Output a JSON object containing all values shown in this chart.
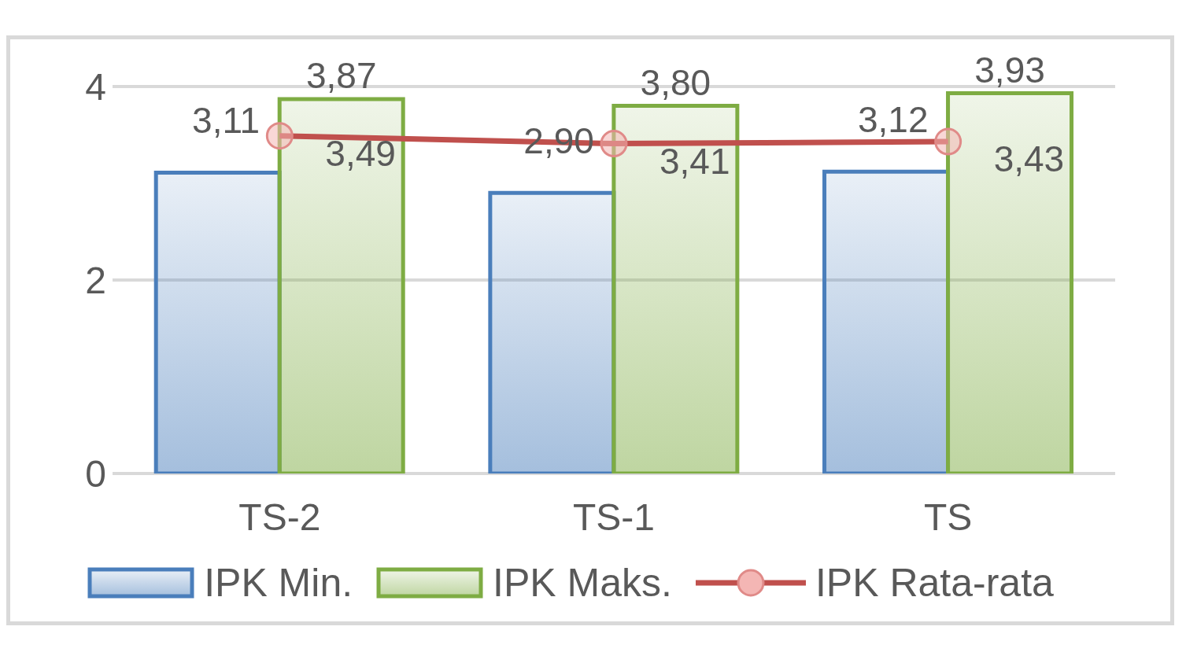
{
  "chart_data": {
    "type": "bar",
    "categories": [
      "TS-2",
      "TS-1",
      "TS"
    ],
    "series": [
      {
        "name": "IPK Min.",
        "color": "#4a7ebb",
        "values": [
          3.11,
          2.9,
          3.12
        ],
        "value_labels": [
          "3,11",
          "2,90",
          "3,12"
        ]
      },
      {
        "name": "IPK Maks.",
        "color": "#7eac43",
        "values": [
          3.87,
          3.8,
          3.93
        ],
        "value_labels": [
          "3,87",
          "3,80",
          "3,93"
        ]
      },
      {
        "name": "IPK Rata-rata",
        "type": "line",
        "color": "#c0504d",
        "values": [
          3.49,
          3.41,
          3.43
        ],
        "value_labels": [
          "3,49",
          "3,41",
          "3,43"
        ]
      }
    ],
    "ylim": [
      0,
      4
    ],
    "yticks": [
      0,
      2,
      4
    ],
    "grid": "y",
    "legend": "bottom",
    "marker": "circle"
  }
}
